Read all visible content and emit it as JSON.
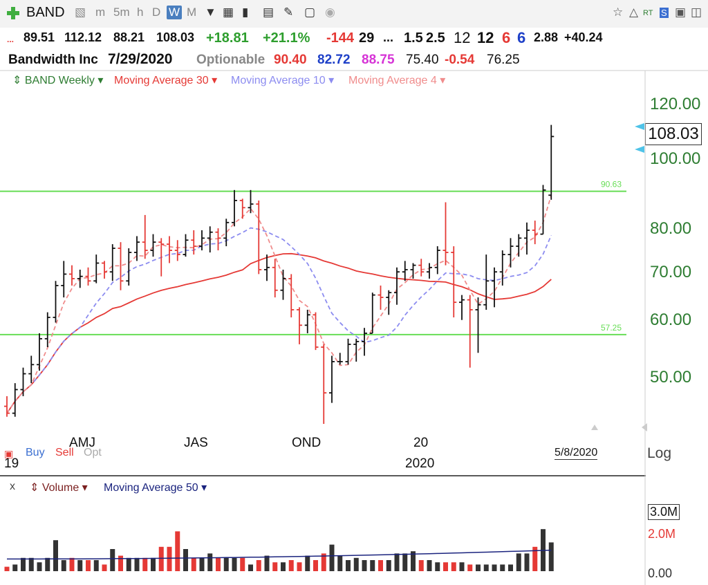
{
  "toolbar": {
    "symbol": "BAND",
    "intervals": [
      "m",
      "5m",
      "h",
      "D",
      "W",
      "M"
    ],
    "active_interval": "W"
  },
  "quote": {
    "dots": "...",
    "open": "89.51",
    "high": "112.12",
    "low": "88.21",
    "close": "108.03",
    "change": "+18.81",
    "change_pct": "+21.1%",
    "v1": "-144",
    "v2": "29",
    "v3": "...",
    "v4": "1.5",
    "v5": "2.5",
    "v6": "12",
    "v7": "12",
    "v8": "6",
    "v9": "6",
    "v10": "2.88",
    "v11": "+40.24"
  },
  "info": {
    "company": "Bandwidth Inc",
    "date": "7/29/2020",
    "optionable": "Optionable",
    "p1": "90.40",
    "p2": "82.72",
    "p3": "88.75",
    "p4": "75.40",
    "p5": "-0.54",
    "p6": "76.25"
  },
  "legend": {
    "price": "BAND Weekly",
    "ma30": "Moving Average 30",
    "ma10": "Moving Average 10",
    "ma4": "Moving Average 4"
  },
  "price_axis": [
    "120.00",
    "100.00",
    "80.00",
    "70.00",
    "60.00",
    "50.00"
  ],
  "last_price": "108.03",
  "x_labels": [
    "AMJ",
    "JAS",
    "OND",
    "20",
    "2020"
  ],
  "x_year_left": "19",
  "date_marker": "5/8/2020",
  "scale_mode": "Log",
  "signals": {
    "buy": "Buy",
    "sell": "Sell",
    "opt": "Opt"
  },
  "volume_legend": {
    "close": "x",
    "volume": "Volume",
    "ma50": "Moving Average 50"
  },
  "volume_axis": [
    "3.0M",
    "2.0M",
    "0.00"
  ],
  "colors": {
    "ma30": "#e53935",
    "ma10": "#8c8cf0",
    "ma4": "#f08c8c",
    "hline": "#66dd55",
    "up": "#111111",
    "down": "#e53935",
    "vol_ma": "#1a237e"
  },
  "chart_data": {
    "type": "bar",
    "scale": "log",
    "ylim": [
      42,
      125
    ],
    "horizontal_lines": [
      {
        "label": "90.63",
        "value": 90.63
      },
      {
        "label": "57.25",
        "value": 57.25
      }
    ],
    "ohlc": [
      [
        45.5,
        47.0,
        44.0,
        44.5
      ],
      [
        44.5,
        49.0,
        44.0,
        48.0
      ],
      [
        48.0,
        51.5,
        47.0,
        50.5
      ],
      [
        50.5,
        53.5,
        49.0,
        52.0
      ],
      [
        52.0,
        57.5,
        51.0,
        56.5
      ],
      [
        56.5,
        61.5,
        55.0,
        60.5
      ],
      [
        60.5,
        68.0,
        59.5,
        67.0
      ],
      [
        67.0,
        72.5,
        64.5,
        69.5
      ],
      [
        69.5,
        71.5,
        67.0,
        68.5
      ],
      [
        68.5,
        70.5,
        66.5,
        69.0
      ],
      [
        69.0,
        71.0,
        67.0,
        68.0
      ],
      [
        68.0,
        74.0,
        67.5,
        72.0
      ],
      [
        72.0,
        72.5,
        68.5,
        70.0
      ],
      [
        70.0,
        76.5,
        68.0,
        75.5
      ],
      [
        75.5,
        77.0,
        66.0,
        68.0
      ],
      [
        68.0,
        75.5,
        67.0,
        74.5
      ],
      [
        74.5,
        78.5,
        72.5,
        77.0
      ],
      [
        77.0,
        84.0,
        73.0,
        75.0
      ],
      [
        75.0,
        79.0,
        73.5,
        77.0
      ],
      [
        77.0,
        78.0,
        69.0,
        76.5
      ],
      [
        76.5,
        78.5,
        72.0,
        75.0
      ],
      [
        75.0,
        77.5,
        72.5,
        74.0
      ],
      [
        74.0,
        79.0,
        73.5,
        77.5
      ],
      [
        77.5,
        80.0,
        74.0,
        76.0
      ],
      [
        76.0,
        80.0,
        75.0,
        78.0
      ],
      [
        78.0,
        81.0,
        74.5,
        79.5
      ],
      [
        79.5,
        80.5,
        75.0,
        78.0
      ],
      [
        78.0,
        83.0,
        76.0,
        82.0
      ],
      [
        82.0,
        91.0,
        81.0,
        88.0
      ],
      [
        88.0,
        88.5,
        83.0,
        86.0
      ],
      [
        86.0,
        91.0,
        84.5,
        87.0
      ],
      [
        87.0,
        88.0,
        69.5,
        70.5
      ],
      [
        70.5,
        74.0,
        68.0,
        71.0
      ],
      [
        71.0,
        73.0,
        64.5,
        66.0
      ],
      [
        66.0,
        70.5,
        64.0,
        68.5
      ],
      [
        68.5,
        69.5,
        60.5,
        62.0
      ],
      [
        62.0,
        62.5,
        55.5,
        59.0
      ],
      [
        59.0,
        62.0,
        57.5,
        61.0
      ],
      [
        61.0,
        61.5,
        54.5,
        55.0
      ],
      [
        55.0,
        55.5,
        43.0,
        47.5
      ],
      [
        47.5,
        53.5,
        46.0,
        52.5
      ],
      [
        52.5,
        54.0,
        52.0,
        52.5
      ],
      [
        52.5,
        56.5,
        52.0,
        55.5
      ],
      [
        55.5,
        56.5,
        52.5,
        56.0
      ],
      [
        56.0,
        58.5,
        53.5,
        57.5
      ],
      [
        57.5,
        65.5,
        57.5,
        65.0
      ],
      [
        65.0,
        67.0,
        62.0,
        64.5
      ],
      [
        64.5,
        66.0,
        61.0,
        65.5
      ],
      [
        65.5,
        71.0,
        63.0,
        70.0
      ],
      [
        70.0,
        72.5,
        68.0,
        70.5
      ],
      [
        70.5,
        72.0,
        68.5,
        71.5
      ],
      [
        71.5,
        73.0,
        69.0,
        70.0
      ],
      [
        70.0,
        72.0,
        68.5,
        71.0
      ],
      [
        71.0,
        76.0,
        69.5,
        75.0
      ],
      [
        75.0,
        87.5,
        71.5,
        74.5
      ],
      [
        74.5,
        76.0,
        60.5,
        63.5
      ],
      [
        63.5,
        65.0,
        60.0,
        64.0
      ],
      [
        64.0,
        65.0,
        51.5,
        62.0
      ],
      [
        62.0,
        64.5,
        54.0,
        63.0
      ],
      [
        63.0,
        74.0,
        62.0,
        68.0
      ],
      [
        68.0,
        71.0,
        62.5,
        70.0
      ],
      [
        70.0,
        75.0,
        67.0,
        74.0
      ],
      [
        74.0,
        78.0,
        71.0,
        76.0
      ],
      [
        76.0,
        79.0,
        73.5,
        78.0
      ],
      [
        78.0,
        82.0,
        74.0,
        80.0
      ],
      [
        80.0,
        82.5,
        76.5,
        79.0
      ],
      [
        79.0,
        92.5,
        79.0,
        91.0
      ],
      [
        89.51,
        112.12,
        88.21,
        108.03
      ]
    ],
    "volume_million": [
      0.2,
      0.3,
      0.6,
      0.6,
      0.4,
      0.6,
      1.4,
      0.5,
      0.6,
      0.5,
      0.5,
      0.5,
      0.3,
      1.0,
      0.7,
      0.6,
      0.6,
      0.6,
      0.6,
      1.1,
      1.1,
      1.8,
      1.0,
      0.6,
      0.6,
      0.8,
      0.6,
      0.6,
      0.6,
      0.6,
      0.3,
      0.5,
      0.7,
      0.4,
      0.4,
      0.5,
      0.4,
      0.7,
      0.5,
      0.8,
      1.2,
      0.7,
      0.5,
      0.6,
      0.5,
      0.5,
      0.5,
      0.5,
      0.8,
      0.8,
      0.9,
      0.5,
      0.5,
      0.4,
      0.4,
      0.4,
      0.4,
      0.3,
      0.3,
      0.3,
      0.3,
      0.3,
      0.3,
      0.8,
      0.8,
      1.1,
      1.9,
      1.3
    ],
    "volume_ylim": [
      0,
      3.0
    ],
    "volume_ma50_million": {
      "start": 0.55,
      "end": 0.95
    }
  }
}
